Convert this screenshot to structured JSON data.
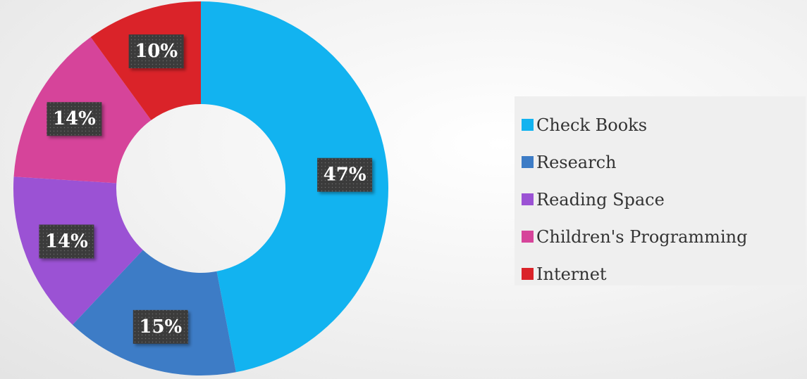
{
  "chart_data": {
    "type": "pie",
    "variant": "donut",
    "categories": [
      "Check Books",
      "Research",
      "Reading Space",
      "Children's Programming",
      "Internet"
    ],
    "values": [
      47,
      15,
      14,
      14,
      10
    ],
    "labels": [
      "47%",
      "15%",
      "14%",
      "14%",
      "10%"
    ],
    "colors": [
      "#12b3f0",
      "#3d7cc6",
      "#9b52d4",
      "#d6449a",
      "#da2329"
    ],
    "legend_position": "right",
    "title": ""
  },
  "legend": {
    "items": [
      {
        "label": "Check Books",
        "color": "#12b3f0"
      },
      {
        "label": "Research",
        "color": "#3d7cc6"
      },
      {
        "label": "Reading Space",
        "color": "#9b52d4"
      },
      {
        "label": "Children's Programming",
        "color": "#d6449a"
      },
      {
        "label": "Internet",
        "color": "#da2329"
      }
    ]
  }
}
